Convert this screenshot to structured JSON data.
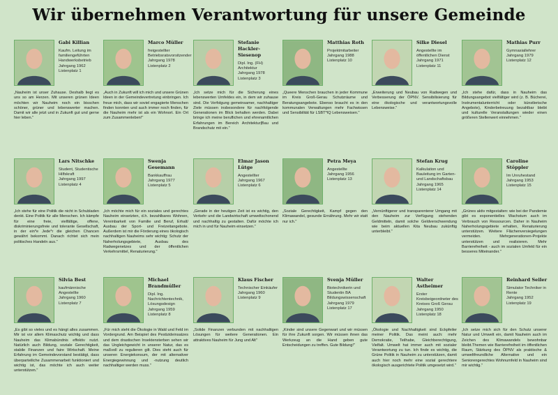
{
  "title": "Wir übernehmen Verantwortung für unsere Gemeinde",
  "colors": {
    "background": "#d0e4c9",
    "photo_border": "#6fb06a"
  },
  "candidates": [
    {
      "name": "Gabi Killian",
      "details": "Kaufm. Leitung im familiengeführten Handwerksbetrieb",
      "year": "Jahrgang 1962",
      "list": "Listenplatz 1",
      "quote": "„Nauheim ist unser Zuhause. Deshalb liegt es uns so am Herzen. Mit unseren grünen Ideen möchten wir Nauheim noch ein bisschen schöner, grüner und lebenswerter machen. Damit wir alle jetzt und in Zukunft gut und gerne hier leben.\""
    },
    {
      "name": "Marco Müller",
      "details": "freigestellter Betriebsratsvorsitzender",
      "year": "Jahrgang 1978",
      "list": "Listenplatz 2",
      "quote": "„Auch in Zukunft will ich mich und unsere Grünen Ideen in der Gemeindevertretung einbringen. Ich freue mich, dass wir soviel engagierte Menschen finden konnten und auch immer noch finden, für die Nauheim mehr ist als ein Wohnort. Ein Ort zum Zusammenleben!\""
    },
    {
      "name": "Stefanie Hackler-Siesenop",
      "details": "Dipl. Ing. (FH) Architektur",
      "year": "Jahrgang 1978",
      "list": "Listenplatz 3",
      "quote": "„Ich setze mich für die Sicherung eines lebenswerten Umfeldes ein, in dem wir zuhause sind. Die Verfolgung gemeinsamer, nachhaltiger Ziele müssen insbesondere für nachfolgende Generationen im Blick behalten werden. Dabei bringe ich meine beruflichen und ehrenamtlichen Erfahrungen im Bereich Architektur|Bau und Brandschutz mit ein.\""
    },
    {
      "name": "Matthias Roth",
      "details": "Projektmitarbeiter",
      "year": "Jahrgang 1988",
      "list": "Listenplatz 10",
      "quote": "„Queere Menschen brauchen in jeder Kommune im Kreis Groß-Gerau Schutzräume und Beratungsangebote. Ebenso braucht es in den kommunalen Verwaltungen mehr Fachwissen und Sensibilität für LSBT*IQ Lebensweisen.\""
    },
    {
      "name": "Silke Diesel",
      "details": "Angestellte im öffentlichen Dienst",
      "year": "Jahrgang 1971",
      "list": "Listenplatz 11",
      "quote": "„Erweiterung und Neubau von Radwegen und Verbesserung der ÖPNV. Sensibilisierung für eine ökologische und verantwortungsvolle Lebensweise.\""
    },
    {
      "name": "Mathias Purr",
      "details": "Gymnasiallehrer",
      "year": "Jahrgang 1979",
      "list": "Listenplatz 12",
      "quote": "„Ich stehe dafür, dass in Nauheim das Bildungsangebot vielfältiger wird (z. B. Bücherei, Instrumentalunterricht oder künstlerische Angebote), Kinderbetreuung bezahlbar bleibt und kulturelle Veranstaltungen wieder einen größeren Stellenwert einnehmen.\""
    },
    {
      "name": "Lars Nitschke",
      "details": "Student, Studentische Hilfskraft",
      "year": "Jahrgang 1997",
      "list": "Listenplatz 4",
      "quote": "„Ich stehe für eine Politik die nicht in Schubladen denkt. Eine Politik für alle Menschen. Ich kämpfe für eine freie, vielfältige, offene, diskriminierungsfreie und tolerante Gesellschaft, in der ein*e Jede*r die gleichen Chancen gewährt bekommt. Danach richtet sich mein politisches Handeln aus.\""
    },
    {
      "name": "Swenja Gesemann",
      "details": "Bankkauffrau",
      "year": "Jahrgang 1977",
      "list": "Listenplatz 5",
      "quote": "„Ich möchte mich für ein soziales und gerechtes Nauheim einsetzten, d.h. bezahlbares Wohnen, Vereinbarkeit von Familie und Beruf, Erhalt/ Ausbau der Sport- und Freizeitangebote. Außerdem ist mir die Förderung eines ökologisch nachhaltigen Nauheims sehr wichtig: Schutz der Naherholungsgebiete, Ausbau des Radwegenetzes und der öffentlichen Verkehrsmittel, Renaturierung.\""
    },
    {
      "name": "Elmar Jason Lütge",
      "details": "Angestellter",
      "year": "Jahrgang 1967",
      "list": "Listenplatz 6",
      "quote": "„Gerade in der heutigen Zeit ist es wichtig, den Verkehr und die Landwirtschaft umweltschonend und nachhaltig zu gestalten. Dafür möchte ich mich in und für Nauheim einsetzen.\""
    },
    {
      "name": "Petra Meya",
      "details": "Angestellte",
      "year": "Jahrgang 1956",
      "list": "Listenplatz 13",
      "quote": "„Soziale Gerechtigkeit, Kampf gegen den Klimawandel, gesunde Ernährung. Mehr wir statt nur ich.\""
    },
    {
      "name": "Stefan Krug",
      "details": "Kalkulation und Bauleitung im Garten- und Landschaftsbau",
      "year": "Jahrgang 1965",
      "list": "Listenplatz 14",
      "quote": "„Vernünftigerer und transparenterer Umgang mit den Nauheim zur Verfügung stehenden Geldmitteln, damit solche Geldverschwendung wie beim aktuellen Kita Neubau zukünftig unterbleibt.\""
    },
    {
      "name": "Caroline Stöppler",
      "details": "Im Unruhestand",
      "year": "Jahrgang 1953",
      "list": "Listenplatz 15",
      "quote": "„Grünes aktiv mitgestalten: wie bei der Pandemie gibt es exponentielles Wachstum auch im Verbrauch von Ressourcen. Daher in Nauheim Naherholungsgebiete erhalten, Renaturierung unterstützen. Weitere Flächenversiegelungen vermeiden. Mehrgenerationen-Projekte unterstützen und realisieren. Mehr Barrierefreiheit - auch im sozialen Umfeld für ein besseres Miteinander.\""
    },
    {
      "name": "Silvia Best",
      "details": "kaufmännische Angestellte",
      "year": "Jahrgang 1960",
      "list": "Listenplatz 7",
      "quote": "„Es gibt so vieles und es hängt alles zusammen. Mir ist vor allem Klimaschutz wichtig und dass Nauheim das Klimabündnis effektiv nutzt. Natürlich auch Bildung, soziale Gerechtigkeit, stabile Finanzen und faire Wirtschaft. Meine Erfahrung im Gemeindevorstand bestätigt, dass überparteiliche Zusammenarbeit funktioniert und wichtig ist, das möchte ich auch weiter unterstützen.\""
    },
    {
      "name": "Michael Brandmüller",
      "details": "Dipl. Ing. Nachrichtentechnik, Lösungsdesign",
      "year": "Jahrgang 1959",
      "list": "Listenplatz 8",
      "quote": "„Für mich steht die Ökologie in Wald und Feld im Vordergrund. Am Beispiel des Pestizideinsatzes und dem drastischen Insektensterben sehen wir das Ungleichgewicht in unserer Natur, das es maßvoll zu regulieren gilt. Dies steht auch für unseren Energiekonsum, der mit alternativer Energiegewinnung und -nutzung deutlich nachhaltiger werden muss.\""
    },
    {
      "name": "Klaus Fischer",
      "details": "Technischer Einkäufer",
      "year": "Jahrgang 1960",
      "list": "Listenplatz 9",
      "quote": "„Solide Finanzen verbunden mit nachhaltigen Lösungen für weitere Generationen. Ein attraktives Nauheim für Jung und Alt\""
    },
    {
      "name": "Svenja Müller",
      "details": "Biotechnikerin und Studentin BA Bildungswissenschaft",
      "year": "Jahrgang 1979",
      "list": "Listenplatz 17",
      "quote": "„Kinder sind unsere Gegenwart und wir müssen für ihre Zukunft sorgen. Wir müssen ihnen das Werkzeug an die Hand geben gute Entscheidungen zu treffen. Gute Bildung!\""
    },
    {
      "name": "Walter Astheimer",
      "details": "Erster Kreisbeigeordneter des Kreises Groß Gerau",
      "year": "Jahrgang 1950",
      "list": "Listenplatz 18",
      "quote": "„Ökologie und Nachhaltigkeit sind Eckpfeiler meiner Politik. Das meint auch: mehr Demokratie, Teilhabe, Gleichberechtigung, Vielfalt. Umwelt hat immer auch mit sozialer Verantwortung zu tun. Ich finde es wichtig, die Grüne Politik in Nauheim zu unterstützen, damit auch hier noch mehr eine sozial gerechtere ökologisch ausgerichtete Politik umgesetzt wird.\""
    },
    {
      "name": "Reinhard Seiler",
      "details": "Simulator Techniker in Rente",
      "year": "Jahrgang 1952",
      "list": "Listenplatz 19",
      "quote": "„Ich setze mich sich für den Schutz unserer Natur und Umwelt ein, damit Nauheim auch im Zeichen des Klimawandels bewohnbar bleibt.Themen wie Barrierefreiheit im öffentlichen Raum, Stärkung des ÖPNV als praktische & umweltfreundliche Alternative und ein Seniorengerechtes Wohnumfeld in Nauheim sind mir wichtig.\""
    }
  ]
}
